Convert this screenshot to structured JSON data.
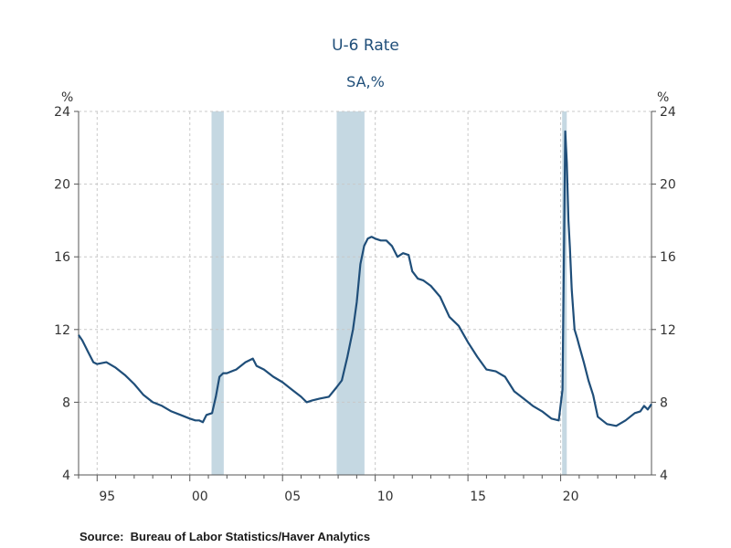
{
  "chart_data": {
    "type": "line",
    "title": "U-6 Rate",
    "subtitle": "SA,%",
    "y_unit_left": "%",
    "y_unit_right": "%",
    "ylim": [
      4,
      24
    ],
    "y_ticks": [
      4,
      8,
      12,
      16,
      20,
      24
    ],
    "y_tick_labels": [
      "4",
      "8",
      "12",
      "16",
      "20",
      "24"
    ],
    "xlim": [
      1994.0,
      2024.9
    ],
    "x_ticks": [
      1995,
      2000,
      2005,
      2010,
      2015,
      2020
    ],
    "x_tick_labels": [
      "95",
      "00",
      "05",
      "10",
      "15",
      "20"
    ],
    "grid": true,
    "line_color": "#1f4e79",
    "recession_color": "#c5d8e2",
    "recessions": [
      [
        2001.17,
        2001.83
      ],
      [
        2007.92,
        2009.42
      ],
      [
        2020.08,
        2020.33
      ]
    ],
    "series": [
      {
        "x": [
          1994.0,
          1994.2,
          1994.5,
          1994.8,
          1995.0,
          1995.5,
          1996.0,
          1996.5,
          1997.0,
          1997.5,
          1998.0,
          1998.5,
          1999.0,
          1999.5,
          2000.0,
          2000.3,
          2000.5,
          2000.7,
          2000.9,
          2001.2,
          2001.4,
          2001.6,
          2001.8,
          2002.0,
          2002.5,
          2003.0,
          2003.4,
          2003.6,
          2004.0,
          2004.5,
          2005.0,
          2005.5,
          2006.0,
          2006.3,
          2006.6,
          2007.0,
          2007.5,
          2007.9,
          2008.2,
          2008.5,
          2008.8,
          2009.0,
          2009.2,
          2009.4,
          2009.6,
          2009.8,
          2010.0,
          2010.3,
          2010.6,
          2010.9,
          2011.2,
          2011.5,
          2011.8,
          2012.0,
          2012.3,
          2012.6,
          2013.0,
          2013.5,
          2014.0,
          2014.5,
          2015.0,
          2015.5,
          2016.0,
          2016.5,
          2017.0,
          2017.5,
          2018.0,
          2018.5,
          2019.0,
          2019.5,
          2019.9,
          2020.1,
          2020.25,
          2020.33,
          2020.42,
          2020.5,
          2020.6,
          2020.75,
          2020.9,
          2021.0,
          2021.25,
          2021.5,
          2021.75,
          2022.0,
          2022.5,
          2023.0,
          2023.5,
          2024.0,
          2024.3,
          2024.5,
          2024.7,
          2024.9
        ],
        "y": [
          11.7,
          11.4,
          10.8,
          10.2,
          10.1,
          10.2,
          9.9,
          9.5,
          9.0,
          8.4,
          8.0,
          7.8,
          7.5,
          7.3,
          7.1,
          7.0,
          7.0,
          6.9,
          7.3,
          7.4,
          8.3,
          9.4,
          9.6,
          9.6,
          9.8,
          10.2,
          10.4,
          10.0,
          9.8,
          9.4,
          9.1,
          8.7,
          8.3,
          8.0,
          8.1,
          8.2,
          8.3,
          8.8,
          9.2,
          10.5,
          12.0,
          13.5,
          15.6,
          16.6,
          17.0,
          17.1,
          17.0,
          16.9,
          16.9,
          16.6,
          16.0,
          16.2,
          16.1,
          15.2,
          14.8,
          14.7,
          14.4,
          13.8,
          12.7,
          12.2,
          11.3,
          10.5,
          9.8,
          9.7,
          9.4,
          8.6,
          8.2,
          7.8,
          7.5,
          7.1,
          7.0,
          8.7,
          22.9,
          21.2,
          18.0,
          16.5,
          14.2,
          12.0,
          11.5,
          11.1,
          10.2,
          9.2,
          8.4,
          7.2,
          6.8,
          6.7,
          7.0,
          7.4,
          7.5,
          7.8,
          7.6,
          7.9
        ]
      }
    ],
    "source_label": "Source:",
    "source_text": "Bureau of Labor Statistics/Haver Analytics"
  }
}
